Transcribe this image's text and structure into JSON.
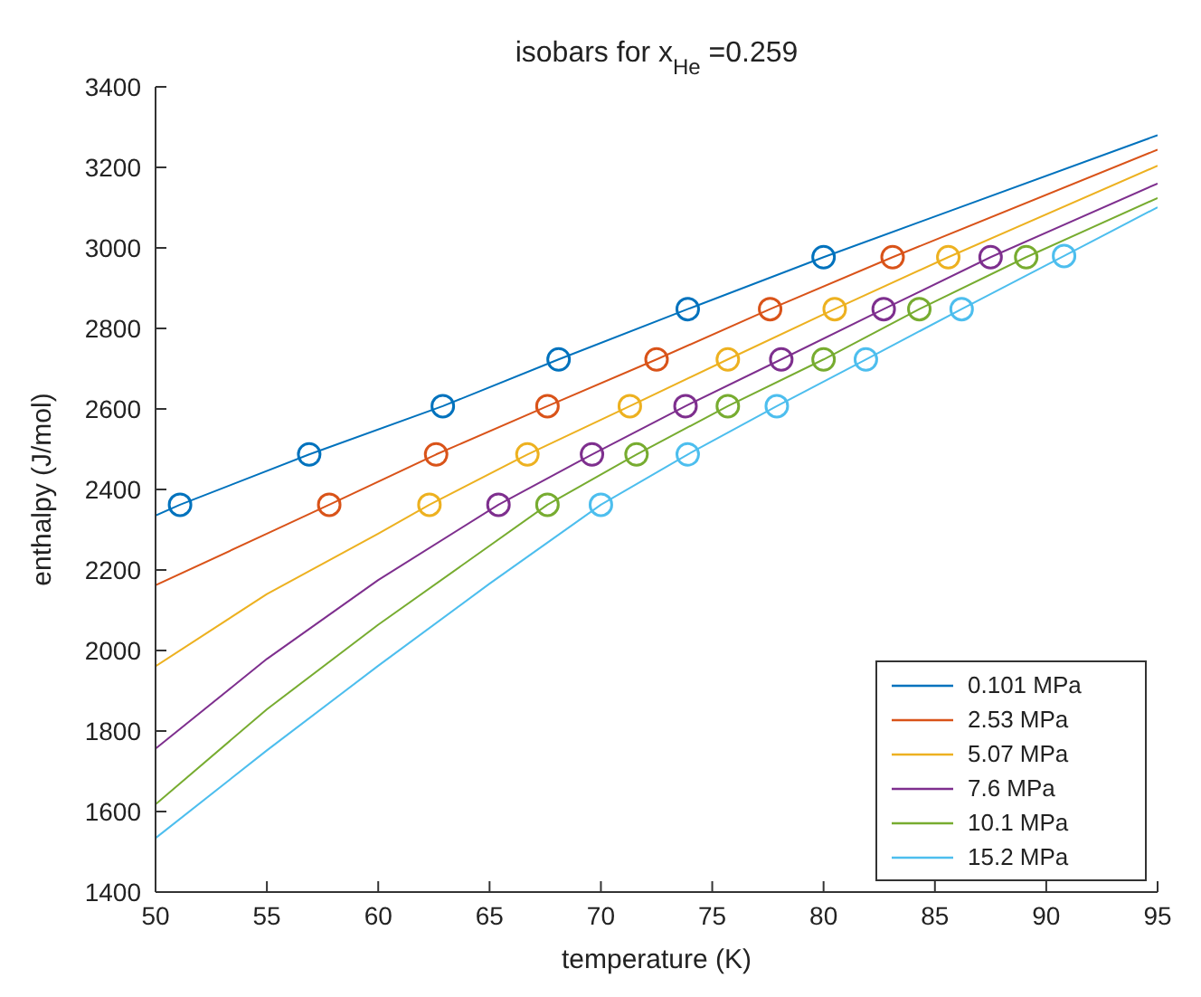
{
  "chart_data": {
    "type": "line",
    "title": "isobars for x$_{He}$ =0.259",
    "xlabel": "temperature (K)",
    "ylabel": "enthalpy (J/mol)",
    "xlim": [
      50,
      95
    ],
    "xticks": [
      50,
      55,
      60,
      65,
      70,
      75,
      80,
      85,
      90,
      95
    ],
    "ylim": [
      1400,
      3400
    ],
    "yticks": [
      1400,
      1600,
      1800,
      2000,
      2200,
      2400,
      2600,
      2800,
      3000,
      3200,
      3400
    ],
    "grid": false,
    "legend": "bottom right",
    "line_style": "solid",
    "marker": "none",
    "series": [
      {
        "name": "0.101 MPa",
        "color": "#0072bd",
        "x": [
          50,
          51.1,
          56.9,
          62.9,
          68.1,
          73.9,
          80.0,
          95
        ],
        "values": [
          2335,
          2362,
          2487,
          2607,
          2723,
          2848,
          2977,
          3280
        ]
      },
      {
        "name": "2.53 MPa",
        "color": "#d95319",
        "x": [
          50,
          55,
          57.8,
          62.6,
          67.6,
          72.5,
          77.6,
          83.1,
          95
        ],
        "values": [
          2162,
          2290,
          2362,
          2487,
          2607,
          2723,
          2848,
          2977,
          3244
        ]
      },
      {
        "name": "5.07 MPa",
        "color": "#edb120",
        "x": [
          50,
          55,
          60,
          62.3,
          66.7,
          71.3,
          75.7,
          80.5,
          85.6,
          95
        ],
        "values": [
          1961,
          2140,
          2290,
          2362,
          2487,
          2607,
          2723,
          2848,
          2977,
          3204
        ]
      },
      {
        "name": "7.6 MPa",
        "color": "#7e2f8e",
        "x": [
          50,
          55,
          60,
          65.4,
          69.6,
          73.8,
          78.1,
          82.7,
          87.5,
          95
        ],
        "values": [
          1756,
          1979,
          2175,
          2362,
          2487,
          2607,
          2723,
          2848,
          2977,
          3160
        ]
      },
      {
        "name": "10.1 MPa",
        "color": "#77ac30",
        "x": [
          50,
          55,
          60,
          67.6,
          71.6,
          75.7,
          80.0,
          84.3,
          89.1,
          95
        ],
        "values": [
          1618,
          1854,
          2064,
          2362,
          2487,
          2607,
          2723,
          2848,
          2977,
          3124
        ]
      },
      {
        "name": "15.2 MPa",
        "color": "#4dbeee",
        "x": [
          50,
          55,
          60,
          65,
          70.0,
          73.9,
          77.9,
          81.9,
          86.2,
          90.8,
          95
        ],
        "values": [
          1534,
          1752,
          1962,
          2166,
          2362,
          2487,
          2607,
          2723,
          2848,
          2980,
          3101
        ]
      },
      {
        "type": "scatter",
        "marker": "circle",
        "color": "#0072bd",
        "x": [
          51.1,
          56.9,
          62.9,
          68.1,
          73.9,
          80.0
        ],
        "values": [
          2362,
          2487,
          2607,
          2723,
          2848,
          2977
        ]
      },
      {
        "type": "scatter",
        "marker": "circle",
        "color": "#d95319",
        "x": [
          57.8,
          62.6,
          67.6,
          72.5,
          77.6,
          83.1
        ],
        "values": [
          2362,
          2487,
          2607,
          2723,
          2848,
          2977
        ]
      },
      {
        "type": "scatter",
        "marker": "circle",
        "color": "#edb120",
        "x": [
          62.3,
          66.7,
          71.3,
          75.7,
          80.5,
          85.6
        ],
        "values": [
          2362,
          2487,
          2607,
          2723,
          2848,
          2977
        ]
      },
      {
        "type": "scatter",
        "marker": "circle",
        "color": "#7e2f8e",
        "x": [
          65.4,
          69.6,
          73.8,
          78.1,
          82.7,
          87.5
        ],
        "values": [
          2362,
          2487,
          2607,
          2723,
          2848,
          2977
        ]
      },
      {
        "type": "scatter",
        "marker": "circle",
        "color": "#77ac30",
        "x": [
          67.6,
          71.6,
          75.7,
          80.0,
          84.3,
          89.1
        ],
        "values": [
          2362,
          2487,
          2607,
          2723,
          2848,
          2977
        ]
      },
      {
        "type": "scatter",
        "marker": "circle",
        "color": "#4dbeee",
        "x": [
          70.0,
          73.9,
          77.9,
          81.9,
          86.2,
          90.8
        ],
        "values": [
          2362,
          2487,
          2607,
          2723,
          2848,
          2980
        ]
      }
    ]
  }
}
